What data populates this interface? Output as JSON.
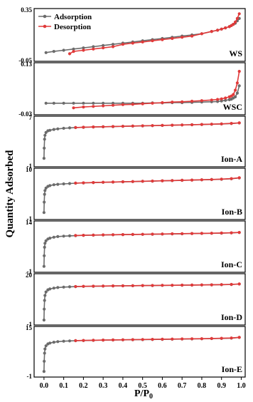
{
  "chart_data": {
    "type": "line",
    "xlabel": "P/P0",
    "ylabel": "Quantity Adsorbed",
    "xlim": [
      -0.05,
      1.02
    ],
    "x_ticks": [
      "0.0",
      "0.1",
      "0.2",
      "0.3",
      "0.4",
      "0.5",
      "0.6",
      "0.7",
      "0.8",
      "0.9",
      "1.0"
    ],
    "legend": {
      "position": "top-left",
      "entries": [
        "Adsorption",
        "Desorption"
      ]
    },
    "colors": {
      "Adsorption": "#6b6b6b",
      "Desorption": "#e03a3a"
    },
    "panels": [
      {
        "label": "WS",
        "ylim": [
          -0.05,
          0.35
        ],
        "y_tick_labels": [
          "0.35",
          "-0.05"
        ],
        "series": [
          {
            "name": "Adsorption",
            "x": [
              0.01,
              0.05,
              0.1,
              0.15,
              0.2,
              0.25,
              0.3,
              0.35,
              0.4,
              0.45,
              0.5,
              0.55,
              0.6,
              0.65,
              0.7,
              0.75,
              0.8,
              0.85,
              0.88,
              0.9,
              0.92,
              0.94,
              0.95,
              0.96,
              0.97,
              0.98,
              0.99
            ],
            "y": [
              0.0,
              0.01,
              0.02,
              0.03,
              0.04,
              0.05,
              0.06,
              0.07,
              0.08,
              0.09,
              0.1,
              0.11,
              0.12,
              0.13,
              0.14,
              0.15,
              0.16,
              0.18,
              0.19,
              0.2,
              0.21,
              0.22,
              0.23,
              0.24,
              0.25,
              0.27,
              0.29
            ]
          },
          {
            "name": "Desorption",
            "x": [
              0.99,
              0.98,
              0.97,
              0.96,
              0.95,
              0.94,
              0.92,
              0.9,
              0.88,
              0.85,
              0.8,
              0.75,
              0.7,
              0.65,
              0.6,
              0.55,
              0.5,
              0.45,
              0.4,
              0.35,
              0.3,
              0.25,
              0.2,
              0.15,
              0.13
            ],
            "y": [
              0.33,
              0.29,
              0.26,
              0.24,
              0.23,
              0.22,
              0.21,
              0.2,
              0.19,
              0.18,
              0.16,
              0.14,
              0.13,
              0.12,
              0.11,
              0.1,
              0.09,
              0.08,
              0.07,
              0.05,
              0.04,
              0.03,
              0.02,
              0.01,
              -0.01
            ]
          }
        ]
      },
      {
        "label": "WSC",
        "ylim": [
          -0.03,
          0.13
        ],
        "y_tick_labels": [
          "0.13",
          "-0.03"
        ],
        "series": [
          {
            "name": "Adsorption",
            "x": [
              0.01,
              0.05,
              0.1,
              0.15,
              0.2,
              0.25,
              0.3,
              0.35,
              0.4,
              0.45,
              0.5,
              0.55,
              0.6,
              0.65,
              0.7,
              0.75,
              0.8,
              0.85,
              0.88,
              0.9,
              0.92,
              0.94,
              0.95,
              0.96,
              0.97,
              0.98,
              0.99
            ],
            "y": [
              0.0,
              0.0,
              0.0,
              0.0,
              0.0,
              0.0,
              0.0,
              0.0,
              0.0,
              0.0,
              0.0,
              0.001,
              0.001,
              0.002,
              0.002,
              0.003,
              0.004,
              0.005,
              0.006,
              0.008,
              0.01,
              0.012,
              0.014,
              0.018,
              0.022,
              0.035,
              0.06
            ]
          },
          {
            "name": "Desorption",
            "x": [
              0.99,
              0.98,
              0.97,
              0.96,
              0.95,
              0.94,
              0.92,
              0.9,
              0.88,
              0.85,
              0.8,
              0.75,
              0.7,
              0.65,
              0.6,
              0.55,
              0.5,
              0.45,
              0.4,
              0.35,
              0.3,
              0.25,
              0.2,
              0.15
            ],
            "y": [
              0.11,
              0.07,
              0.045,
              0.03,
              0.025,
              0.022,
              0.018,
              0.015,
              0.013,
              0.011,
              0.009,
              0.007,
              0.005,
              0.004,
              0.002,
              0.0,
              -0.002,
              -0.004,
              -0.005,
              -0.007,
              -0.009,
              -0.011,
              -0.013,
              -0.016
            ]
          }
        ]
      },
      {
        "label": "Ion-A",
        "ylim": [
          -1,
          7
        ],
        "y_tick_labels": [
          "7",
          "-1"
        ],
        "series": [
          {
            "name": "Adsorption",
            "x": [
              0.0,
              0.001,
              0.003,
              0.005,
              0.01,
              0.02,
              0.03,
              0.05,
              0.07,
              0.1,
              0.13,
              0.16,
              0.2,
              0.25,
              0.3,
              0.35,
              0.4,
              0.45,
              0.5,
              0.55,
              0.6,
              0.65,
              0.7,
              0.75,
              0.8,
              0.85,
              0.9,
              0.95,
              0.99
            ],
            "y": [
              0.0,
              1.8,
              3.4,
              4.1,
              4.6,
              4.9,
              5.0,
              5.15,
              5.25,
              5.35,
              5.42,
              5.48,
              5.53,
              5.58,
              5.62,
              5.66,
              5.7,
              5.74,
              5.78,
              5.82,
              5.86,
              5.9,
              5.94,
              5.98,
              6.02,
              6.07,
              6.12,
              6.2,
              6.3
            ]
          },
          {
            "name": "Desorption",
            "x": [
              0.99,
              0.95,
              0.9,
              0.85,
              0.8,
              0.75,
              0.7,
              0.65,
              0.6,
              0.55,
              0.5,
              0.45,
              0.4,
              0.35,
              0.3,
              0.25,
              0.2,
              0.16
            ],
            "y": [
              6.32,
              6.22,
              6.14,
              6.08,
              6.03,
              5.99,
              5.95,
              5.91,
              5.87,
              5.83,
              5.79,
              5.75,
              5.71,
              5.67,
              5.63,
              5.59,
              5.54,
              5.49
            ]
          }
        ]
      },
      {
        "label": "Ion-B",
        "ylim": [
          -1,
          10
        ],
        "y_tick_labels": [
          "10",
          "-1"
        ],
        "series": [
          {
            "name": "Adsorption",
            "x": [
              0.0,
              0.001,
              0.003,
              0.005,
              0.01,
              0.02,
              0.03,
              0.05,
              0.07,
              0.1,
              0.13,
              0.16,
              0.2,
              0.25,
              0.3,
              0.35,
              0.4,
              0.45,
              0.5,
              0.55,
              0.6,
              0.65,
              0.7,
              0.75,
              0.8,
              0.85,
              0.9,
              0.95,
              0.99
            ],
            "y": [
              0.0,
              2.5,
              4.4,
              5.3,
              5.9,
              6.3,
              6.5,
              6.7,
              6.8,
              6.9,
              7.0,
              7.08,
              7.15,
              7.22,
              7.28,
              7.34,
              7.4,
              7.46,
              7.52,
              7.58,
              7.64,
              7.7,
              7.76,
              7.82,
              7.88,
              7.95,
              8.03,
              8.15,
              8.35
            ]
          },
          {
            "name": "Desorption",
            "x": [
              0.99,
              0.95,
              0.9,
              0.85,
              0.8,
              0.75,
              0.7,
              0.65,
              0.6,
              0.55,
              0.5,
              0.45,
              0.4,
              0.35,
              0.3,
              0.25,
              0.2,
              0.16
            ],
            "y": [
              8.38,
              8.18,
              8.06,
              7.97,
              7.9,
              7.84,
              7.78,
              7.72,
              7.66,
              7.6,
              7.54,
              7.48,
              7.42,
              7.36,
              7.3,
              7.24,
              7.17,
              7.1
            ]
          }
        ]
      },
      {
        "label": "Ion-C",
        "ylim": [
          -1,
          14
        ],
        "y_tick_labels": [
          "14",
          "-1"
        ],
        "series": [
          {
            "name": "Adsorption",
            "x": [
              0.0,
              0.001,
              0.003,
              0.005,
              0.01,
              0.02,
              0.03,
              0.05,
              0.07,
              0.1,
              0.13,
              0.16,
              0.2,
              0.25,
              0.3,
              0.35,
              0.4,
              0.45,
              0.5,
              0.55,
              0.6,
              0.65,
              0.7,
              0.75,
              0.8,
              0.85,
              0.9,
              0.95,
              0.99
            ],
            "y": [
              0.0,
              3.5,
              6.3,
              7.6,
              8.4,
              9.0,
              9.3,
              9.6,
              9.8,
              9.95,
              10.05,
              10.12,
              10.2,
              10.27,
              10.33,
              10.38,
              10.43,
              10.48,
              10.53,
              10.58,
              10.63,
              10.68,
              10.73,
              10.78,
              10.83,
              10.88,
              10.94,
              11.02,
              11.15
            ]
          },
          {
            "name": "Desorption",
            "x": [
              0.99,
              0.95,
              0.9,
              0.85,
              0.8,
              0.75,
              0.7,
              0.65,
              0.6,
              0.55,
              0.5,
              0.45,
              0.4,
              0.35,
              0.3,
              0.25,
              0.2,
              0.16
            ],
            "y": [
              11.17,
              11.05,
              10.97,
              10.91,
              10.86,
              10.81,
              10.76,
              10.71,
              10.66,
              10.61,
              10.56,
              10.51,
              10.46,
              10.41,
              10.36,
              10.3,
              10.23,
              10.16
            ]
          }
        ]
      },
      {
        "label": "Ion-D",
        "ylim": [
          -1,
          20
        ],
        "y_tick_labels": [
          "20",
          "-1"
        ],
        "series": [
          {
            "name": "Adsorption",
            "x": [
              0.0,
              0.001,
              0.003,
              0.005,
              0.01,
              0.02,
              0.03,
              0.05,
              0.07,
              0.1,
              0.13,
              0.16,
              0.2,
              0.25,
              0.3,
              0.35,
              0.4,
              0.45,
              0.5,
              0.55,
              0.6,
              0.65,
              0.7,
              0.75,
              0.8,
              0.85,
              0.9,
              0.95,
              0.99
            ],
            "y": [
              0.0,
              5.0,
              9.0,
              11.3,
              12.9,
              13.9,
              14.3,
              14.7,
              14.95,
              15.15,
              15.28,
              15.38,
              15.47,
              15.55,
              15.61,
              15.67,
              15.72,
              15.77,
              15.82,
              15.87,
              15.92,
              15.97,
              16.02,
              16.07,
              16.12,
              16.18,
              16.25,
              16.35,
              16.55
            ]
          },
          {
            "name": "Desorption",
            "x": [
              0.99,
              0.95,
              0.9,
              0.85,
              0.8,
              0.75,
              0.7,
              0.65,
              0.6,
              0.55,
              0.5,
              0.45,
              0.4,
              0.35,
              0.3,
              0.25,
              0.2,
              0.16
            ],
            "y": [
              16.58,
              16.38,
              16.28,
              16.21,
              16.15,
              16.1,
              16.05,
              16.0,
              15.95,
              15.9,
              15.85,
              15.8,
              15.75,
              15.7,
              15.64,
              15.58,
              15.5,
              15.42
            ]
          }
        ]
      },
      {
        "label": "Ion-E",
        "ylim": [
          -1,
          15
        ],
        "y_tick_labels": [
          "15",
          "-1"
        ],
        "series": [
          {
            "name": "Adsorption",
            "x": [
              0.0,
              0.001,
              0.003,
              0.005,
              0.01,
              0.02,
              0.03,
              0.05,
              0.07,
              0.1,
              0.13,
              0.16,
              0.2,
              0.25,
              0.3,
              0.35,
              0.4,
              0.45,
              0.5,
              0.55,
              0.6,
              0.65,
              0.7,
              0.75,
              0.8,
              0.85,
              0.9,
              0.95,
              0.99
            ],
            "y": [
              0.0,
              3.6,
              6.5,
              8.0,
              9.1,
              9.8,
              10.1,
              10.4,
              10.6,
              10.75,
              10.85,
              10.93,
              11.0,
              11.07,
              11.13,
              11.18,
              11.23,
              11.28,
              11.33,
              11.38,
              11.43,
              11.48,
              11.53,
              11.58,
              11.63,
              11.69,
              11.76,
              11.86,
              12.1
            ]
          },
          {
            "name": "Desorption",
            "x": [
              0.99,
              0.95,
              0.9,
              0.85,
              0.8,
              0.75,
              0.7,
              0.65,
              0.6,
              0.55,
              0.5,
              0.45,
              0.4,
              0.35,
              0.3,
              0.25,
              0.2,
              0.16
            ],
            "y": [
              12.12,
              11.9,
              11.8,
              11.72,
              11.66,
              11.61,
              11.56,
              11.51,
              11.46,
              11.41,
              11.36,
              11.31,
              11.26,
              11.21,
              11.16,
              11.1,
              11.03,
              10.96
            ]
          }
        ]
      }
    ]
  }
}
